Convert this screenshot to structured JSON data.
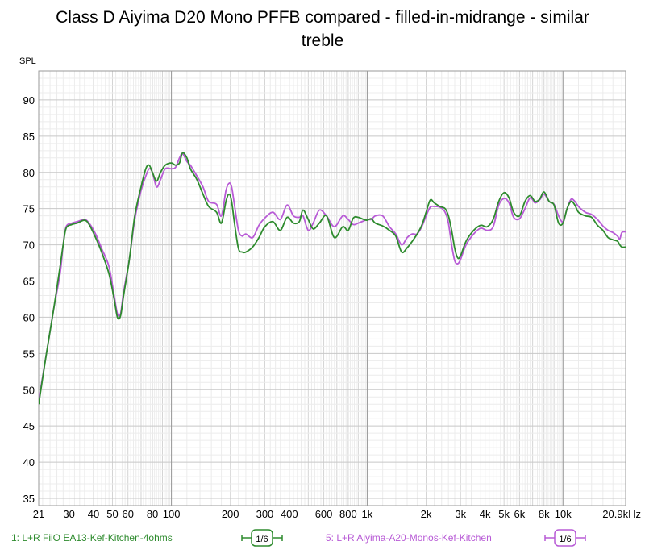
{
  "chart_data": {
    "type": "line",
    "title": "Class D Aiyima D20 Mono PFFB compared - filled-in-midrange - similar treble",
    "title_lines": [
      "Class D Aiyima D20 Mono PFFB compared - filled-in-midrange - similar",
      "treble"
    ],
    "ylabel": "SPL",
    "xlabel": "",
    "x_scale": "log",
    "xlim": [
      21,
      20900
    ],
    "ylim": [
      34,
      94
    ],
    "grid": true,
    "legend_position": "bottom",
    "x_ticks": [
      {
        "v": 21,
        "label": "21"
      },
      {
        "v": 30,
        "label": "30"
      },
      {
        "v": 40,
        "label": "40"
      },
      {
        "v": 50,
        "label": "50"
      },
      {
        "v": 60,
        "label": "60"
      },
      {
        "v": 80,
        "label": "80"
      },
      {
        "v": 100,
        "label": "100"
      },
      {
        "v": 200,
        "label": "200"
      },
      {
        "v": 300,
        "label": "300"
      },
      {
        "v": 400,
        "label": "400"
      },
      {
        "v": 600,
        "label": "600"
      },
      {
        "v": 800,
        "label": "800"
      },
      {
        "v": 1000,
        "label": "1k"
      },
      {
        "v": 2000,
        "label": "2k"
      },
      {
        "v": 3000,
        "label": "3k"
      },
      {
        "v": 4000,
        "label": "4k"
      },
      {
        "v": 5000,
        "label": "5k"
      },
      {
        "v": 6000,
        "label": "6k"
      },
      {
        "v": 8000,
        "label": "8k"
      },
      {
        "v": 10000,
        "label": "10k"
      },
      {
        "v": 20900,
        "label": "20.9kHz"
      }
    ],
    "y_ticks": [
      35,
      40,
      45,
      50,
      55,
      60,
      65,
      70,
      75,
      80,
      85,
      90
    ],
    "series": [
      {
        "name": "1: L+R FiiO EA13-Kef-Kitchen-4ohms",
        "color": "#2e8b2e",
        "smoothing": "1/6",
        "points": [
          [
            21,
            48
          ],
          [
            23,
            55
          ],
          [
            25,
            61
          ],
          [
            27,
            67
          ],
          [
            28,
            70
          ],
          [
            29,
            72.3
          ],
          [
            31,
            72.8
          ],
          [
            33,
            73
          ],
          [
            36,
            73.4
          ],
          [
            38,
            72.8
          ],
          [
            41,
            71
          ],
          [
            44,
            69
          ],
          [
            48,
            66
          ],
          [
            51,
            62.5
          ],
          [
            53,
            60
          ],
          [
            55,
            60.2
          ],
          [
            57,
            63
          ],
          [
            61,
            68
          ],
          [
            65,
            74
          ],
          [
            70,
            78
          ],
          [
            74,
            80.5
          ],
          [
            77,
            81
          ],
          [
            80,
            80
          ],
          [
            84,
            78.8
          ],
          [
            88,
            80
          ],
          [
            93,
            81
          ],
          [
            100,
            81.3
          ],
          [
            105,
            81
          ],
          [
            110,
            81.3
          ],
          [
            114,
            82.7
          ],
          [
            120,
            82
          ],
          [
            125,
            80.5
          ],
          [
            135,
            79
          ],
          [
            145,
            77
          ],
          [
            155,
            75.3
          ],
          [
            170,
            74.5
          ],
          [
            180,
            73
          ],
          [
            190,
            76
          ],
          [
            197,
            77
          ],
          [
            203,
            76
          ],
          [
            210,
            73
          ],
          [
            220,
            69.5
          ],
          [
            230,
            69
          ],
          [
            240,
            69
          ],
          [
            260,
            69.7
          ],
          [
            280,
            71
          ],
          [
            300,
            72.5
          ],
          [
            330,
            73.2
          ],
          [
            360,
            72
          ],
          [
            390,
            73.8
          ],
          [
            420,
            73
          ],
          [
            450,
            73.2
          ],
          [
            470,
            74.8
          ],
          [
            500,
            73.5
          ],
          [
            530,
            72.2
          ],
          [
            570,
            73
          ],
          [
            620,
            74
          ],
          [
            680,
            71
          ],
          [
            750,
            72.5
          ],
          [
            800,
            72
          ],
          [
            850,
            73.7
          ],
          [
            900,
            73.8
          ],
          [
            960,
            73.5
          ],
          [
            1000,
            73.4
          ],
          [
            1050,
            73.6
          ],
          [
            1100,
            73
          ],
          [
            1200,
            72.6
          ],
          [
            1300,
            72
          ],
          [
            1400,
            71.2
          ],
          [
            1500,
            69
          ],
          [
            1600,
            69.6
          ],
          [
            1700,
            70.5
          ],
          [
            1800,
            71.5
          ],
          [
            1900,
            72.7
          ],
          [
            2000,
            74.5
          ],
          [
            2100,
            76.2
          ],
          [
            2200,
            75.8
          ],
          [
            2350,
            75.3
          ],
          [
            2500,
            75
          ],
          [
            2600,
            74
          ],
          [
            2700,
            72
          ],
          [
            2800,
            69.5
          ],
          [
            2900,
            68.2
          ],
          [
            3000,
            68.5
          ],
          [
            3200,
            70.5
          ],
          [
            3500,
            72
          ],
          [
            3800,
            72.7
          ],
          [
            4100,
            72.5
          ],
          [
            4400,
            73.5
          ],
          [
            4700,
            76
          ],
          [
            5000,
            77.2
          ],
          [
            5300,
            76.5
          ],
          [
            5600,
            74.5
          ],
          [
            6000,
            74
          ],
          [
            6400,
            76
          ],
          [
            6800,
            76.8
          ],
          [
            7200,
            76
          ],
          [
            7600,
            76.3
          ],
          [
            8000,
            77.3
          ],
          [
            8500,
            76
          ],
          [
            9000,
            75.5
          ],
          [
            9500,
            73
          ],
          [
            10000,
            73
          ],
          [
            10500,
            75
          ],
          [
            11000,
            76
          ],
          [
            11500,
            75.5
          ],
          [
            12000,
            74.5
          ],
          [
            13000,
            74
          ],
          [
            14000,
            73.8
          ],
          [
            15000,
            72.7
          ],
          [
            16000,
            72
          ],
          [
            17000,
            71
          ],
          [
            18000,
            70.7
          ],
          [
            19000,
            70.5
          ],
          [
            19500,
            70
          ],
          [
            20000,
            69.7
          ],
          [
            20900,
            69.7
          ]
        ]
      },
      {
        "name": "5: L+R Aiyima-A20-Monos-Kef-Kitchen",
        "color": "#b85bd6",
        "smoothing": "1/6",
        "points": [
          [
            21,
            48.5
          ],
          [
            23,
            55
          ],
          [
            25,
            61
          ],
          [
            27,
            66
          ],
          [
            28,
            70
          ],
          [
            29,
            72.5
          ],
          [
            31,
            73
          ],
          [
            33,
            73.2
          ],
          [
            36,
            73.5
          ],
          [
            38,
            73
          ],
          [
            41,
            71.5
          ],
          [
            44,
            69.5
          ],
          [
            48,
            67
          ],
          [
            51,
            63
          ],
          [
            53,
            60.5
          ],
          [
            55,
            60.5
          ],
          [
            57,
            63.5
          ],
          [
            61,
            68
          ],
          [
            65,
            73.5
          ],
          [
            70,
            77.5
          ],
          [
            74,
            79.5
          ],
          [
            77,
            80.5
          ],
          [
            80,
            80
          ],
          [
            84,
            78
          ],
          [
            88,
            79
          ],
          [
            93,
            80.5
          ],
          [
            100,
            80.5
          ],
          [
            105,
            80.7
          ],
          [
            110,
            82
          ],
          [
            114,
            82.6
          ],
          [
            120,
            81.5
          ],
          [
            125,
            81
          ],
          [
            135,
            79.5
          ],
          [
            145,
            78
          ],
          [
            155,
            76
          ],
          [
            170,
            75.6
          ],
          [
            180,
            74
          ],
          [
            190,
            77.5
          ],
          [
            197,
            78.5
          ],
          [
            203,
            78
          ],
          [
            210,
            75.5
          ],
          [
            220,
            72
          ],
          [
            230,
            71.2
          ],
          [
            240,
            71.5
          ],
          [
            260,
            71
          ],
          [
            280,
            72.7
          ],
          [
            300,
            73.7
          ],
          [
            330,
            74.5
          ],
          [
            360,
            73.5
          ],
          [
            390,
            75.5
          ],
          [
            420,
            74
          ],
          [
            450,
            73.8
          ],
          [
            470,
            74
          ],
          [
            500,
            72
          ],
          [
            530,
            73
          ],
          [
            570,
            74.8
          ],
          [
            620,
            74
          ],
          [
            680,
            72.5
          ],
          [
            750,
            74
          ],
          [
            800,
            73.5
          ],
          [
            850,
            72.8
          ],
          [
            900,
            73
          ],
          [
            960,
            73.3
          ],
          [
            1000,
            73.5
          ],
          [
            1050,
            73.5
          ],
          [
            1100,
            74
          ],
          [
            1200,
            74
          ],
          [
            1300,
            72.5
          ],
          [
            1400,
            71.5
          ],
          [
            1500,
            70
          ],
          [
            1600,
            71
          ],
          [
            1700,
            71.5
          ],
          [
            1800,
            71.5
          ],
          [
            1900,
            72.5
          ],
          [
            2000,
            74
          ],
          [
            2100,
            75.2
          ],
          [
            2200,
            75.3
          ],
          [
            2350,
            75.2
          ],
          [
            2500,
            74.5
          ],
          [
            2600,
            73
          ],
          [
            2700,
            70
          ],
          [
            2800,
            67.8
          ],
          [
            2900,
            67.4
          ],
          [
            3000,
            68
          ],
          [
            3200,
            70
          ],
          [
            3500,
            71.5
          ],
          [
            3800,
            72.3
          ],
          [
            4100,
            72
          ],
          [
            4400,
            72.5
          ],
          [
            4700,
            75.5
          ],
          [
            5000,
            76.4
          ],
          [
            5300,
            75.8
          ],
          [
            5600,
            73.8
          ],
          [
            6000,
            73.6
          ],
          [
            6400,
            75
          ],
          [
            6800,
            76.5
          ],
          [
            7200,
            75.8
          ],
          [
            7600,
            76.2
          ],
          [
            8000,
            77
          ],
          [
            8500,
            76
          ],
          [
            9000,
            75.6
          ],
          [
            9500,
            74
          ],
          [
            10000,
            73.2
          ],
          [
            10500,
            75
          ],
          [
            11000,
            76.3
          ],
          [
            11500,
            76
          ],
          [
            12000,
            75.3
          ],
          [
            13000,
            74.5
          ],
          [
            14000,
            74.2
          ],
          [
            15000,
            73.5
          ],
          [
            16000,
            72.6
          ],
          [
            17000,
            72
          ],
          [
            18000,
            71.7
          ],
          [
            19000,
            71.2
          ],
          [
            19500,
            70.8
          ],
          [
            20000,
            71.7
          ],
          [
            20900,
            71.8
          ]
        ]
      }
    ]
  }
}
